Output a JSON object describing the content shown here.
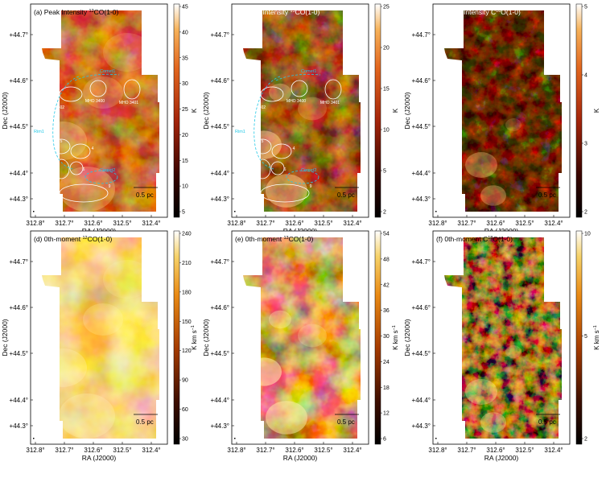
{
  "panels": [
    {
      "id": "a",
      "title": "(a) Peak Intensity ",
      "iso": "12",
      "mol": "CO(1-0)",
      "cbar_unit": "K",
      "cbar_ticks": [
        "45",
        "40",
        "35",
        "30",
        "25",
        "20",
        "15",
        "10",
        "5"
      ],
      "cmap": "heat",
      "coverage": "full",
      "annotations": [
        {
          "label": "Comet1",
          "kind": "cyan"
        },
        {
          "label": "MHO 3400",
          "kind": "white"
        },
        {
          "label": "MHO 3401",
          "kind": "white"
        },
        {
          "label": "MHO 3402",
          "kind": "white"
        },
        {
          "label": "Rim1",
          "kind": "cyan"
        },
        {
          "label": "Comet2",
          "kind": "cyan"
        },
        {
          "label": "4",
          "kind": "white"
        },
        {
          "label": "5",
          "kind": "white"
        },
        {
          "label": "6",
          "kind": "white"
        },
        {
          "label": "7",
          "kind": "white"
        },
        {
          "label": "8",
          "kind": "white"
        },
        {
          "label": "9",
          "kind": "white"
        }
      ]
    },
    {
      "id": "b",
      "title": "(b) Peak Intensity ",
      "iso": "13",
      "mol": "CO(1-0)",
      "cbar_unit": "K",
      "cbar_ticks": [
        "25",
        "20",
        "15",
        "10",
        "5",
        "2"
      ],
      "cmap": "heat",
      "coverage": "medium",
      "annotations": [
        {
          "label": "Comet1",
          "kind": "cyan"
        },
        {
          "label": "MHO 3400",
          "kind": "white"
        },
        {
          "label": "MHO 3401",
          "kind": "white"
        },
        {
          "label": "MHO 3402",
          "kind": "white"
        },
        {
          "label": "Rim1",
          "kind": "cyan"
        },
        {
          "label": "Comet2",
          "kind": "cyan"
        },
        {
          "label": "4",
          "kind": "white"
        },
        {
          "label": "5",
          "kind": "white"
        },
        {
          "label": "6",
          "kind": "white"
        },
        {
          "label": "7",
          "kind": "white"
        },
        {
          "label": "8",
          "kind": "white"
        },
        {
          "label": "9",
          "kind": "white"
        }
      ]
    },
    {
      "id": "c",
      "title": "(c) Peak Intensity C",
      "iso": "18",
      "mol": "O(1-0)",
      "cbar_unit": "K",
      "cbar_ticks": [
        "5",
        "4",
        "3",
        "2"
      ],
      "cmap": "heat",
      "coverage": "sparse",
      "annotations": []
    },
    {
      "id": "d",
      "title": "(d) 0th-moment ",
      "iso": "12",
      "mol": "CO(1-0)",
      "cbar_unit": "K km s",
      "cbar_ticks": [
        "240",
        "210",
        "180",
        "150",
        "120",
        "90",
        "60",
        "30"
      ],
      "cmap": "afm",
      "coverage": "full",
      "annotations": []
    },
    {
      "id": "e",
      "title": "(e) 0th-moment ",
      "iso": "13",
      "mol": "CO(1-0)",
      "cbar_unit": "K km s",
      "cbar_ticks": [
        "54",
        "48",
        "42",
        "36",
        "30",
        "24",
        "18",
        "12",
        "6"
      ],
      "cmap": "afm",
      "coverage": "medium",
      "annotations": []
    },
    {
      "id": "f",
      "title": "(f) 0th-moment C",
      "iso": "18",
      "mol": "O(1-0)",
      "cbar_unit": "K km s",
      "cbar_ticks": [
        "10",
        "5",
        "2"
      ],
      "cmap": "afm",
      "coverage": "sparse",
      "annotations": []
    }
  ],
  "axes": {
    "xlabel": "RA (J2000)",
    "ylabel": "Dec (J2000)",
    "xticks": [
      "312.8°",
      "312.7°",
      "312.6°",
      "312.5°",
      "312.4°"
    ],
    "yticks": [
      "+44.7°",
      "+44.6°",
      "+44.5°",
      "+44.4°",
      "+44.3°"
    ]
  },
  "scalebar_label": "0.5 pc",
  "colors": {
    "cyan": "#22c8e6",
    "white": "#ffffff",
    "background": "#ffffff"
  }
}
